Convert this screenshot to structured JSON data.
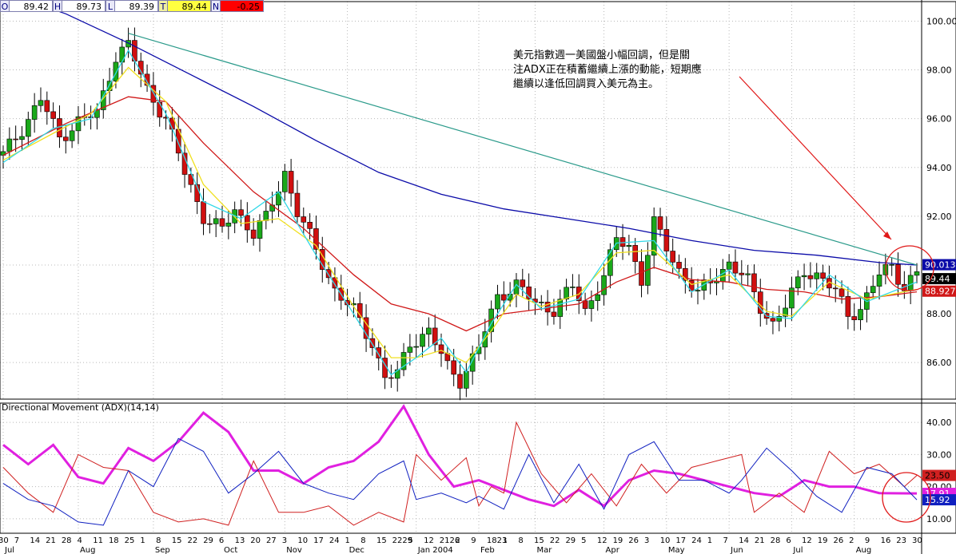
{
  "quote_bar": {
    "open_key": "O",
    "open": "89.42",
    "high_key": "H",
    "high": "89.73",
    "low_key": "L",
    "low": "89.39",
    "close_key": "T",
    "close": "89.44",
    "change_key": "N",
    "change": "-0.25"
  },
  "annotation": {
    "lines": [
      "美元指數週一美國盤小幅回調，但是關",
      "注ADX正在積蓄繼續上漲的動能，短期應",
      "繼續以逢低回調買入美元為主。"
    ]
  },
  "lower_title": "Directional Movement (ADX)(14,14)",
  "colors": {
    "ma_blue": "#0a0aa8",
    "ma_red": "#d01818",
    "ma_yellow": "#f0e020",
    "ma_cyan": "#30d8e8",
    "trendline": "#2a9a8a",
    "candle_green": "#1aa81a",
    "candle_red": "#d01010",
    "adx_magenta": "#e020e0",
    "di_plus_red": "#d02020",
    "di_minus_blue": "#1020c0",
    "grid": "#b8b8b8",
    "circle": "#e01818"
  },
  "x_axis": {
    "day_labels": [
      "30",
      "7",
      "14",
      "21",
      "28",
      "4",
      "11",
      "18",
      "25",
      "1",
      "8",
      "15",
      "22",
      "29",
      "6",
      "13",
      "20",
      "27",
      "3",
      "10",
      "17",
      "24",
      "1",
      "8",
      "15",
      "2229",
      "5",
      "12",
      "2126",
      "2",
      "9",
      "1823",
      "1",
      "8",
      "15",
      "22",
      "29",
      "5",
      "12",
      "19",
      "26",
      "3",
      "10",
      "17",
      "24",
      "1",
      "7",
      "14",
      "21",
      "28",
      "6",
      "12",
      "19",
      "26",
      "2",
      "9",
      "16",
      "23",
      "30"
    ],
    "month_labels": [
      "Jul",
      "Aug",
      "Sep",
      "Oct",
      "Nov",
      "Dec",
      "Jan 2004",
      "Feb",
      "Mar",
      "Apr",
      "May",
      "Jun",
      "Jul",
      "Aug"
    ]
  },
  "chart_data": [
    {
      "type": "candlestick",
      "title": "",
      "yticks": [
        86.0,
        88.0,
        90.0,
        92.0,
        94.0,
        96.0,
        98.0,
        100.0
      ],
      "ylim": [
        84.5,
        100.8
      ],
      "grid": true,
      "last_values": {
        "ma_long": "90.013",
        "price": "89.44",
        "ma_mid": "88.927"
      },
      "price_path": [
        [
          0,
          94.5
        ],
        [
          3,
          95.6
        ],
        [
          6,
          96.8
        ],
        [
          9,
          95.2
        ],
        [
          12,
          95.9
        ],
        [
          15,
          96.2
        ],
        [
          18,
          98.6
        ],
        [
          20,
          99.0
        ],
        [
          23,
          97.2
        ],
        [
          26,
          96.0
        ],
        [
          29,
          93.8
        ],
        [
          32,
          92.0
        ],
        [
          35,
          91.4
        ],
        [
          37,
          92.3
        ],
        [
          40,
          91.3
        ],
        [
          42,
          91.9
        ],
        [
          45,
          93.8
        ],
        [
          47,
          92.2
        ],
        [
          50,
          90.6
        ],
        [
          53,
          89.0
        ],
        [
          56,
          88.1
        ],
        [
          59,
          86.8
        ],
        [
          61,
          85.4
        ],
        [
          63,
          85.5
        ],
        [
          65,
          86.8
        ],
        [
          68,
          87.3
        ],
        [
          71,
          85.8
        ],
        [
          73,
          85.3
        ],
        [
          76,
          86.6
        ],
        [
          79,
          88.7
        ],
        [
          82,
          89.2
        ],
        [
          85,
          88.4
        ],
        [
          88,
          88.2
        ],
        [
          91,
          89.1
        ],
        [
          93,
          88.1
        ],
        [
          96,
          89.6
        ],
        [
          98,
          91.0
        ],
        [
          100,
          90.8
        ],
        [
          102,
          89.4
        ],
        [
          104,
          91.7
        ],
        [
          106,
          90.7
        ],
        [
          108,
          89.8
        ],
        [
          111,
          88.8
        ],
        [
          113,
          89.3
        ],
        [
          116,
          90.1
        ],
        [
          119,
          89.3
        ],
        [
          121,
          88.3
        ],
        [
          123,
          87.6
        ],
        [
          125,
          88.3
        ],
        [
          128,
          89.8
        ],
        [
          130,
          89.6
        ],
        [
          133,
          88.9
        ],
        [
          135,
          88.0
        ],
        [
          137,
          88.2
        ],
        [
          140,
          89.6
        ],
        [
          142,
          90.0
        ],
        [
          144,
          89.1
        ],
        [
          146,
          89.6
        ]
      ],
      "moving_averages": [
        {
          "name": "ma_long",
          "values": [
            [
              0,
              101.2
            ],
            [
              10,
              100.3
            ],
            [
              20,
              99.1
            ],
            [
              30,
              97.8
            ],
            [
              40,
              96.5
            ],
            [
              50,
              95.1
            ],
            [
              60,
              93.8
            ],
            [
              70,
              92.9
            ],
            [
              80,
              92.3
            ],
            [
              90,
              91.9
            ],
            [
              100,
              91.5
            ],
            [
              110,
              91.0
            ],
            [
              120,
              90.6
            ],
            [
              130,
              90.4
            ],
            [
              140,
              90.1
            ],
            [
              146,
              90.0
            ]
          ]
        },
        {
          "name": "ma_mid",
          "values": [
            [
              0,
              94.5
            ],
            [
              10,
              95.8
            ],
            [
              20,
              96.9
            ],
            [
              26,
              96.7
            ],
            [
              32,
              95.0
            ],
            [
              40,
              93.0
            ],
            [
              48,
              91.5
            ],
            [
              56,
              89.6
            ],
            [
              62,
              88.4
            ],
            [
              68,
              88.0
            ],
            [
              74,
              87.3
            ],
            [
              80,
              88.0
            ],
            [
              86,
              88.2
            ],
            [
              92,
              88.4
            ],
            [
              98,
              89.3
            ],
            [
              104,
              89.9
            ],
            [
              110,
              89.4
            ],
            [
              116,
              89.3
            ],
            [
              122,
              89.0
            ],
            [
              128,
              88.9
            ],
            [
              134,
              88.6
            ],
            [
              140,
              88.7
            ],
            [
              146,
              88.9
            ]
          ]
        },
        {
          "name": "ma_short",
          "values": [
            [
              0,
              94.3
            ],
            [
              8,
              95.4
            ],
            [
              14,
              96.2
            ],
            [
              20,
              98.1
            ],
            [
              26,
              96.7
            ],
            [
              32,
              93.3
            ],
            [
              38,
              91.7
            ],
            [
              44,
              91.9
            ],
            [
              50,
              90.8
            ],
            [
              56,
              88.3
            ],
            [
              62,
              86.2
            ],
            [
              66,
              86.2
            ],
            [
              70,
              86.5
            ],
            [
              74,
              86.0
            ],
            [
              78,
              87.3
            ],
            [
              82,
              88.8
            ],
            [
              86,
              88.3
            ],
            [
              92,
              88.8
            ],
            [
              98,
              90.5
            ],
            [
              104,
              90.6
            ],
            [
              110,
              89.2
            ],
            [
              116,
              89.6
            ],
            [
              122,
              88.1
            ],
            [
              126,
              87.9
            ],
            [
              132,
              89.3
            ],
            [
              138,
              88.6
            ],
            [
              146,
              89.0
            ]
          ]
        },
        {
          "name": "ma_fast",
          "values": [
            [
              0,
              94.2
            ],
            [
              8,
              95.6
            ],
            [
              14,
              96.0
            ],
            [
              20,
              98.8
            ],
            [
              26,
              96.2
            ],
            [
              32,
              92.6
            ],
            [
              38,
              91.9
            ],
            [
              44,
              93.0
            ],
            [
              50,
              90.4
            ],
            [
              56,
              88.0
            ],
            [
              62,
              85.5
            ],
            [
              66,
              86.2
            ],
            [
              70,
              87.0
            ],
            [
              74,
              85.6
            ],
            [
              78,
              87.6
            ],
            [
              82,
              89.2
            ],
            [
              86,
              88.2
            ],
            [
              92,
              88.6
            ],
            [
              98,
              90.9
            ],
            [
              104,
              91.0
            ],
            [
              110,
              88.9
            ],
            [
              116,
              89.8
            ],
            [
              122,
              87.9
            ],
            [
              126,
              87.8
            ],
            [
              132,
              89.6
            ],
            [
              138,
              88.5
            ],
            [
              146,
              89.3
            ]
          ]
        }
      ],
      "trendline": [
        [
          20,
          99.5
        ],
        [
          146,
          90.0
        ]
      ]
    },
    {
      "type": "line",
      "title": "Directional Movement (ADX)(14,14)",
      "yticks": [
        10.0,
        20.0,
        30.0,
        40.0
      ],
      "ylim": [
        5.5,
        46.0
      ],
      "grid": true,
      "last_values": {
        "di_plus": "23.50",
        "adx": "17.91",
        "di_minus": "15.92"
      },
      "series": [
        {
          "name": "adx",
          "values": [
            [
              0,
              33
            ],
            [
              4,
              27
            ],
            [
              8,
              33
            ],
            [
              12,
              23
            ],
            [
              16,
              21
            ],
            [
              20,
              32
            ],
            [
              24,
              28
            ],
            [
              28,
              34
            ],
            [
              32,
              43
            ],
            [
              36,
              37
            ],
            [
              40,
              25
            ],
            [
              44,
              25
            ],
            [
              48,
              21
            ],
            [
              52,
              26
            ],
            [
              56,
              28
            ],
            [
              60,
              34
            ],
            [
              64,
              45
            ],
            [
              68,
              30
            ],
            [
              72,
              20
            ],
            [
              76,
              22
            ],
            [
              80,
              19
            ],
            [
              84,
              16
            ],
            [
              88,
              14
            ],
            [
              92,
              19
            ],
            [
              96,
              14
            ],
            [
              100,
              22
            ],
            [
              104,
              25
            ],
            [
              108,
              24
            ],
            [
              112,
              22
            ],
            [
              116,
              20
            ],
            [
              120,
              18
            ],
            [
              124,
              17
            ],
            [
              128,
              22
            ],
            [
              132,
              20
            ],
            [
              136,
              20
            ],
            [
              140,
              18
            ],
            [
              146,
              17.9
            ]
          ]
        },
        {
          "name": "di_plus",
          "values": [
            [
              0,
              26
            ],
            [
              4,
              18
            ],
            [
              8,
              12
            ],
            [
              12,
              30
            ],
            [
              16,
              26
            ],
            [
              20,
              25
            ],
            [
              24,
              12
            ],
            [
              28,
              9
            ],
            [
              32,
              10
            ],
            [
              36,
              8
            ],
            [
              40,
              28
            ],
            [
              44,
              12
            ],
            [
              48,
              12
            ],
            [
              52,
              14
            ],
            [
              56,
              8
            ],
            [
              60,
              12
            ],
            [
              64,
              9
            ],
            [
              66,
              30
            ],
            [
              70,
              22
            ],
            [
              74,
              29
            ],
            [
              76,
              14
            ],
            [
              78,
              20
            ],
            [
              80,
              18
            ],
            [
              82,
              40
            ],
            [
              86,
              24
            ],
            [
              90,
              15
            ],
            [
              94,
              24
            ],
            [
              98,
              14
            ],
            [
              102,
              27
            ],
            [
              106,
              18
            ],
            [
              110,
              26
            ],
            [
              114,
              28
            ],
            [
              118,
              30
            ],
            [
              120,
              12
            ],
            [
              124,
              18
            ],
            [
              128,
              12
            ],
            [
              132,
              31
            ],
            [
              136,
              24
            ],
            [
              140,
              27
            ],
            [
              144,
              20
            ],
            [
              146,
              23.5
            ]
          ]
        },
        {
          "name": "di_minus",
          "values": [
            [
              0,
              21
            ],
            [
              4,
              16
            ],
            [
              8,
              14
            ],
            [
              12,
              9
            ],
            [
              16,
              8
            ],
            [
              20,
              25
            ],
            [
              24,
              20
            ],
            [
              28,
              35
            ],
            [
              32,
              31
            ],
            [
              36,
              18
            ],
            [
              40,
              24
            ],
            [
              44,
              31
            ],
            [
              48,
              21
            ],
            [
              52,
              18
            ],
            [
              56,
              16
            ],
            [
              60,
              24
            ],
            [
              64,
              28
            ],
            [
              66,
              16
            ],
            [
              70,
              18
            ],
            [
              74,
              15
            ],
            [
              76,
              17
            ],
            [
              80,
              13
            ],
            [
              84,
              30
            ],
            [
              88,
              15
            ],
            [
              92,
              27
            ],
            [
              96,
              13
            ],
            [
              100,
              30
            ],
            [
              104,
              34
            ],
            [
              108,
              22
            ],
            [
              112,
              22
            ],
            [
              116,
              18
            ],
            [
              118,
              22
            ],
            [
              122,
              32
            ],
            [
              126,
              25
            ],
            [
              130,
              17
            ],
            [
              134,
              12
            ],
            [
              138,
              26
            ],
            [
              142,
              24
            ],
            [
              146,
              15.9
            ]
          ]
        }
      ]
    }
  ]
}
